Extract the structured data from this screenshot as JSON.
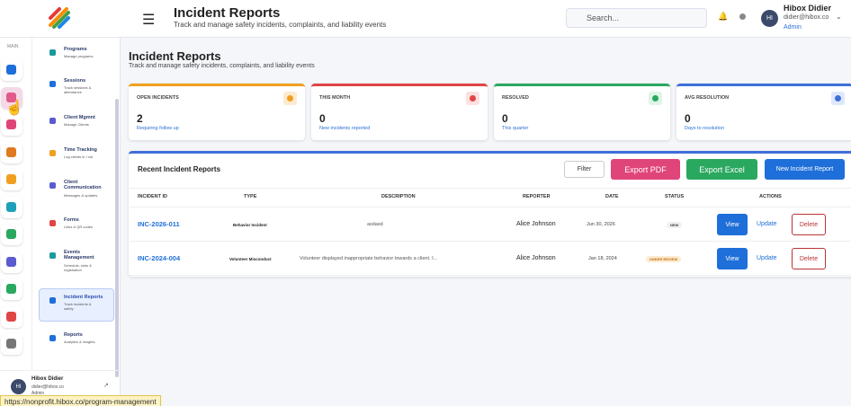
{
  "header": {
    "title": "Incident Reports",
    "subtitle": "Track and manage safety incidents, complaints, and liability events",
    "search_placeholder": "Search...",
    "user": {
      "initials": "HI",
      "name": "Hibox Didier",
      "email": "didier@hibox.co",
      "role": "Admin"
    }
  },
  "sidebar": {
    "section_label": "MAIN",
    "items": [
      {
        "title": "Programs",
        "desc": "Manage programs"
      },
      {
        "title": "Sessions",
        "desc": "Track sessions & attendance"
      },
      {
        "title": "Client Mgmnt",
        "desc": "Manage Clients"
      },
      {
        "title": "Time Tracking",
        "desc": "Log clients in / out"
      },
      {
        "title": "Client Communication",
        "desc": "Messages & updates"
      },
      {
        "title": "Forms",
        "desc": "Links & QR codes"
      },
      {
        "title": "Events Management",
        "desc": "Schedule, slots & registration"
      },
      {
        "title": "Incident Reports",
        "desc": "Track incidents & safety"
      },
      {
        "title": "Reports",
        "desc": "Analytics & insights"
      }
    ],
    "user": {
      "initials": "HI",
      "name": "Hibox Didier",
      "email": "didier@hibox.co",
      "role": "Admin"
    }
  },
  "page": {
    "title": "Incident Reports",
    "subtitle": "Track and manage safety incidents, complaints, and liability events"
  },
  "stats": [
    {
      "label": "OPEN INCIDENTS",
      "value": 2,
      "note": "Requiring follow up"
    },
    {
      "label": "THIS MONTH",
      "value": 0,
      "note": "New incidents reported"
    },
    {
      "label": "RESOLVED",
      "value": 0,
      "note": "This quarter"
    },
    {
      "label": "AVG RESOLUTION",
      "value": 0,
      "note": "Days to resolution"
    }
  ],
  "table": {
    "title": "Recent Incident Reports",
    "buttons": [
      "Filter",
      "Export PDF",
      "Export Excel",
      "New Incident Report"
    ],
    "columns": [
      "INCIDENT ID",
      "TYPE",
      "DESCRIPTION",
      "REPORTER",
      "DATE",
      "STATUS",
      "ACTIONS"
    ],
    "rows": [
      [
        "INC-2026-011",
        "Behavior Incident",
        "asdasd",
        "Alice Johnson",
        "Jun 30, 2026",
        "NEW"
      ],
      [
        "INC-2024-004",
        "Volunteer Misconduct",
        "Volunteer displayed inappropriate behavior towards a client. I...",
        "Alice Johnson",
        "Jan 18, 2024",
        "UNDER REVIEW"
      ]
    ],
    "row_actions": [
      "View",
      "Update",
      "Delete"
    ]
  },
  "status_url": "https://nonprofit.hibox.co/program-management"
}
